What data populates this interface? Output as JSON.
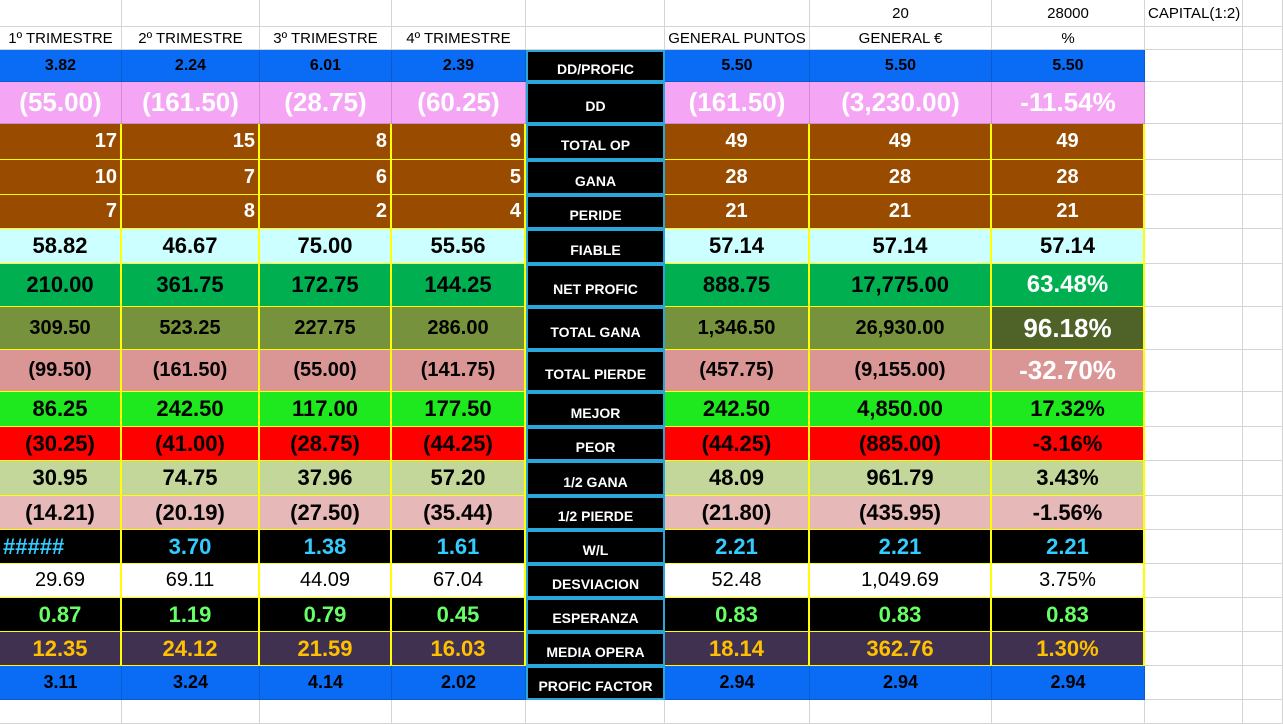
{
  "top_row": [
    "20",
    "28000",
    "CAPITAL(1:2)"
  ],
  "headers": [
    "1º TRIMESTRE",
    "2º TRIMESTRE",
    "3º TRIMESTRE",
    "4º TRIMESTRE",
    "GENERAL PUNTOS",
    "GENERAL €",
    "%"
  ],
  "rows": [
    {
      "label": "DD/PROFIC",
      "values": [
        "3.82",
        "2.24",
        "6.01",
        "2.39",
        "5.50",
        "5.50",
        "5.50"
      ]
    },
    {
      "label": "DD",
      "values": [
        "(55.00)",
        "(161.50)",
        "(28.75)",
        "(60.25)",
        "(161.50)",
        "(3,230.00)",
        "-11.54%"
      ]
    },
    {
      "label": "TOTAL OP",
      "values": [
        "17",
        "15",
        "8",
        "9",
        "49",
        "49",
        "49"
      ]
    },
    {
      "label": "GANA",
      "values": [
        "10",
        "7",
        "6",
        "5",
        "28",
        "28",
        "28"
      ]
    },
    {
      "label": "PERIDE",
      "values": [
        "7",
        "8",
        "2",
        "4",
        "21",
        "21",
        "21"
      ]
    },
    {
      "label": "FIABLE",
      "values": [
        "58.82",
        "46.67",
        "75.00",
        "55.56",
        "57.14",
        "57.14",
        "57.14"
      ]
    },
    {
      "label": "NET PROFIC",
      "values": [
        "210.00",
        "361.75",
        "172.75",
        "144.25",
        "888.75",
        "17,775.00",
        "63.48%"
      ]
    },
    {
      "label": "TOTAL GANA",
      "values": [
        "309.50",
        "523.25",
        "227.75",
        "286.00",
        "1,346.50",
        "26,930.00",
        "96.18%"
      ]
    },
    {
      "label": "TOTAL PIERDE",
      "values": [
        "(99.50)",
        "(161.50)",
        "(55.00)",
        "(141.75)",
        "(457.75)",
        "(9,155.00)",
        "-32.70%"
      ]
    },
    {
      "label": "MEJOR",
      "values": [
        "86.25",
        "242.50",
        "117.00",
        "177.50",
        "242.50",
        "4,850.00",
        "17.32%"
      ]
    },
    {
      "label": "PEOR",
      "values": [
        "(30.25)",
        "(41.00)",
        "(28.75)",
        "(44.25)",
        "(44.25)",
        "(885.00)",
        "-3.16%"
      ]
    },
    {
      "label": "1/2 GANA",
      "values": [
        "30.95",
        "74.75",
        "37.96",
        "57.20",
        "48.09",
        "961.79",
        "3.43%"
      ]
    },
    {
      "label": "1/2 PIERDE",
      "values": [
        "(14.21)",
        "(20.19)",
        "(27.50)",
        "(35.44)",
        "(21.80)",
        "(435.95)",
        "-1.56%"
      ]
    },
    {
      "label": "W/L",
      "values": [
        "#####",
        "3.70",
        "1.38",
        "1.61",
        "2.21",
        "2.21",
        "2.21"
      ]
    },
    {
      "label": "DESVIACION",
      "values": [
        "29.69",
        "69.11",
        "44.09",
        "67.04",
        "52.48",
        "1,049.69",
        "3.75%"
      ]
    },
    {
      "label": "ESPERANZA",
      "values": [
        "0.87",
        "1.19",
        "0.79",
        "0.45",
        "0.83",
        "0.83",
        "0.83"
      ]
    },
    {
      "label": "MEDIA OPERA",
      "values": [
        "12.35",
        "24.12",
        "21.59",
        "16.03",
        "18.14",
        "362.76",
        "1.30%"
      ]
    },
    {
      "label": "PROFIC FACTOR",
      "values": [
        "3.11",
        "3.24",
        "4.14",
        "2.02",
        "2.94",
        "2.94",
        "2.94"
      ]
    }
  ]
}
